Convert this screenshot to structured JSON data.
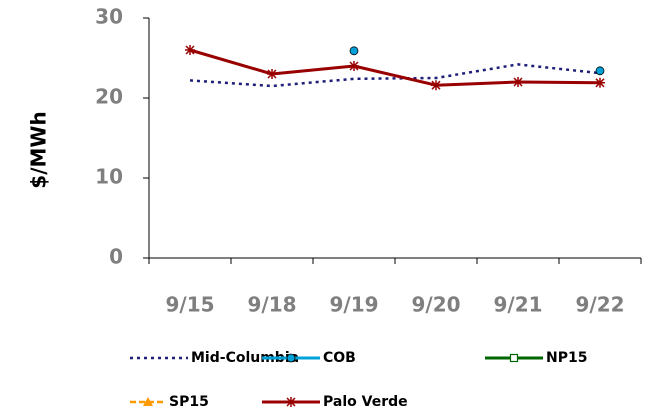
{
  "chart_data": {
    "type": "line",
    "y_label": "$/MWh",
    "categories": [
      "9/15",
      "9/18",
      "9/19",
      "9/20",
      "9/21",
      "9/22"
    ],
    "ylim": [
      0,
      30
    ],
    "yticks": [
      0,
      10,
      20,
      30
    ],
    "series": [
      {
        "name": "Mid-Columbia",
        "color": "#1f1f7a",
        "dash": "dotted",
        "marker": "none",
        "values": [
          22.2,
          21.5,
          22.4,
          22.5,
          24.2,
          23.1
        ]
      },
      {
        "name": "COB",
        "color": "#00a0d8",
        "marker": "circle",
        "values": [
          null,
          null,
          25.9,
          null,
          null,
          23.4
        ]
      },
      {
        "name": "NP15",
        "color": "#006600",
        "marker": "square",
        "values": [
          null,
          null,
          null,
          null,
          null,
          null
        ]
      },
      {
        "name": "SP15",
        "color": "#ff9900",
        "dash": "dashed",
        "marker": "triangle",
        "values": [
          null,
          null,
          null,
          null,
          null,
          null
        ]
      },
      {
        "name": "Palo Verde",
        "color": "#990000",
        "marker": "star",
        "values": [
          26.0,
          23.0,
          24.0,
          21.6,
          22.0,
          21.9
        ]
      }
    ]
  }
}
